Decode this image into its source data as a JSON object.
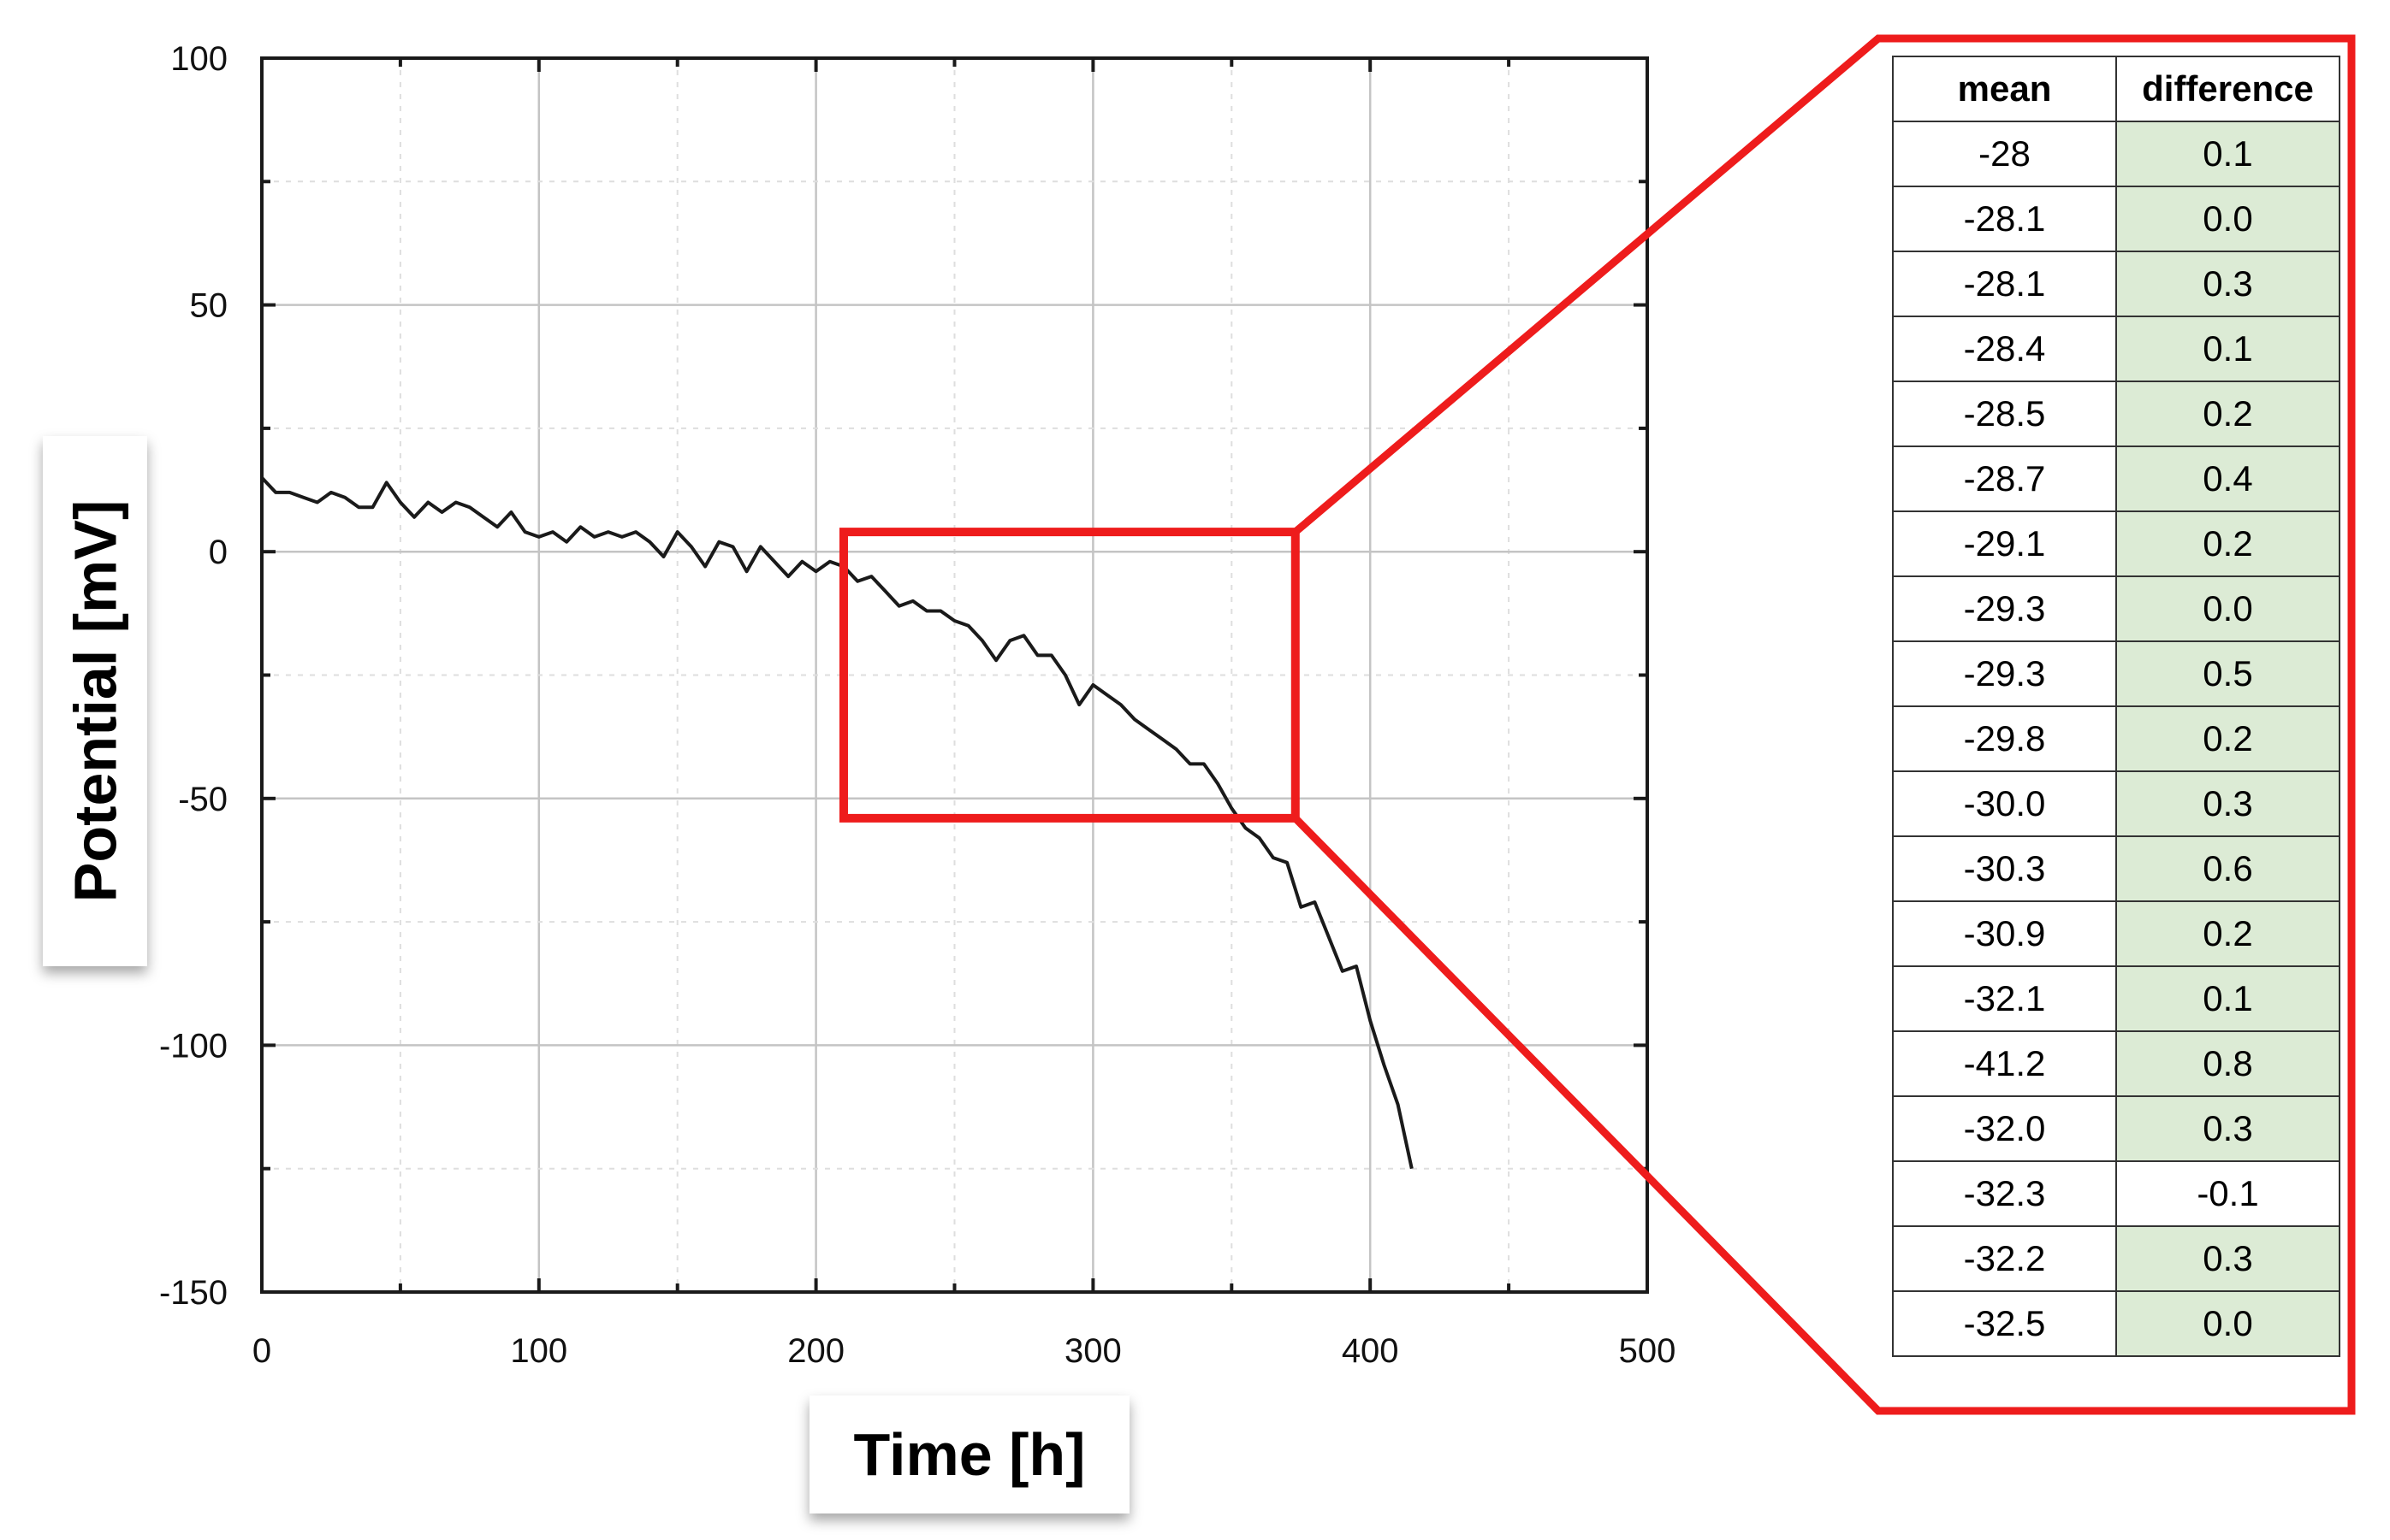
{
  "chart_data": {
    "type": "line",
    "xlabel": "Time [h]",
    "ylabel": "Potential [mV]",
    "xlim": [
      0,
      500
    ],
    "ylim": [
      -150,
      100
    ],
    "xticks": [
      "0",
      "100",
      "200",
      "300",
      "400",
      "500"
    ],
    "yticks": [
      "100",
      "50",
      "0",
      "-50",
      "-100",
      "-150"
    ],
    "grid": true,
    "series": [
      {
        "color": "#1a1a1a",
        "x": [
          0,
          5,
          10,
          15,
          20,
          25,
          30,
          35,
          40,
          45,
          50,
          55,
          60,
          65,
          70,
          75,
          80,
          85,
          90,
          95,
          100,
          105,
          110,
          115,
          120,
          125,
          130,
          135,
          140,
          145,
          150,
          155,
          160,
          165,
          170,
          175,
          180,
          185,
          190,
          195,
          200,
          205,
          210,
          215,
          220,
          225,
          230,
          235,
          240,
          245,
          250,
          255,
          260,
          265,
          270,
          275,
          280,
          285,
          290,
          295,
          300,
          305,
          310,
          315,
          320,
          325,
          330,
          335,
          340,
          345,
          350,
          355,
          360,
          365,
          370,
          375,
          380,
          385,
          390,
          395,
          400,
          405,
          410,
          415
        ],
        "y": [
          15,
          12,
          12,
          11,
          10,
          12,
          11,
          9,
          9,
          14,
          10,
          7,
          10,
          8,
          10,
          9,
          7,
          5,
          8,
          4,
          3,
          4,
          2,
          5,
          3,
          4,
          3,
          4,
          2,
          -1,
          4,
          1,
          -3,
          2,
          1,
          -4,
          1,
          -2,
          -5,
          -2,
          -4,
          -2,
          -3,
          -6,
          -5,
          -8,
          -11,
          -10,
          -12,
          -12,
          -14,
          -15,
          -18,
          -22,
          -18,
          -17,
          -21,
          -21,
          -25,
          -31,
          -27,
          -29,
          -31,
          -34,
          -36,
          -38,
          -40,
          -43,
          -43,
          -47,
          -52,
          -56,
          -58,
          -62,
          -63,
          -72,
          -71,
          -78,
          -85,
          -84,
          -95,
          -104,
          -112,
          -125
        ]
      }
    ],
    "highlight_box": {
      "x_range": [
        210,
        373
      ],
      "y_range": [
        -54,
        4
      ],
      "color": "#ee1c1c"
    }
  },
  "table": {
    "headers": [
      "mean",
      "difference"
    ],
    "rows": [
      [
        "-28",
        "0.1"
      ],
      [
        "-28.1",
        "0.0"
      ],
      [
        "-28.1",
        "0.3"
      ],
      [
        "-28.4",
        "0.1"
      ],
      [
        "-28.5",
        "0.2"
      ],
      [
        "-28.7",
        "0.4"
      ],
      [
        "-29.1",
        "0.2"
      ],
      [
        "-29.3",
        "0.0"
      ],
      [
        "-29.3",
        "0.5"
      ],
      [
        "-29.8",
        "0.2"
      ],
      [
        "-30.0",
        "0.3"
      ],
      [
        "-30.3",
        "0.6"
      ],
      [
        "-30.9",
        "0.2"
      ],
      [
        "-32.1",
        "0.1"
      ],
      [
        "-41.2",
        "0.8"
      ],
      [
        "-32.0",
        "0.3"
      ],
      [
        "-32.3",
        "-0.1"
      ],
      [
        "-32.2",
        "0.3"
      ],
      [
        "-32.5",
        "0.0"
      ]
    ]
  },
  "colors": {
    "highlight": "#ee1c1c",
    "table_fill": "#dcebd5"
  }
}
